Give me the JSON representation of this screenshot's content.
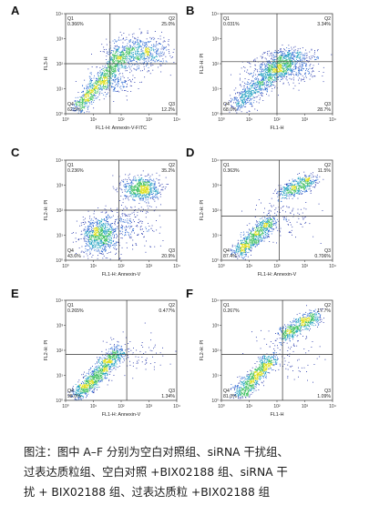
{
  "panels": [
    {
      "letter": "A",
      "q1": "0.366%",
      "q2": "25.0%",
      "q3": "12.2%",
      "q4": "62.5%",
      "xlabel": "FL1-H: Annexin-V-FITC",
      "ylabel": "FL3-H"
    },
    {
      "letter": "B",
      "q1": "0.031%",
      "q2": "3.34%",
      "q3": "28.7%",
      "q4": "68.0%",
      "xlabel": "FL1-H",
      "ylabel": "FL2-H: PI"
    },
    {
      "letter": "C",
      "q1": "0.236%",
      "q2": "35.2%",
      "q3": "20.9%",
      "q4": "43.6%",
      "xlabel": "FL1-H: Annexin-V",
      "ylabel": "FL2-H: PI"
    },
    {
      "letter": "D",
      "q1": "0.363%",
      "q2": "11.5%",
      "q3": "0.706%",
      "q4": "87.4%",
      "xlabel": "FL1-H: Annexin-V",
      "ylabel": "FL2-H: PI"
    },
    {
      "letter": "E",
      "q1": "0.265%",
      "q2": "0.477%",
      "q3": "1.34%",
      "q4": "98.0%",
      "xlabel": "FL1-H: Annexin-V",
      "ylabel": "FL2-H: PI"
    },
    {
      "letter": "F",
      "q1": "0.267%",
      "q2": "17.7%",
      "q3": "1.09%",
      "q4": "81.0%",
      "xlabel": "FL1-H",
      "ylabel": "FL2-H: PI"
    }
  ],
  "quadrant_labels": [
    "Q1",
    "Q2",
    "Q3",
    "Q4"
  ],
  "tick_labels": [
    "10⁰",
    "10¹",
    "10²",
    "10³",
    "10⁴"
  ],
  "caption_lines": [
    "图注：图中 A–F 分别为空白对照组、siRNA 干扰组、",
    "过表达质粒组、空白对照 +BIX02188 组、siRNA 干",
    "扰 + BIX02188 组、过表达质粒 +BIX02188 组"
  ],
  "colors": {
    "gate": "#333333",
    "frame": "#444444",
    "text": "#1a1a1a"
  }
}
